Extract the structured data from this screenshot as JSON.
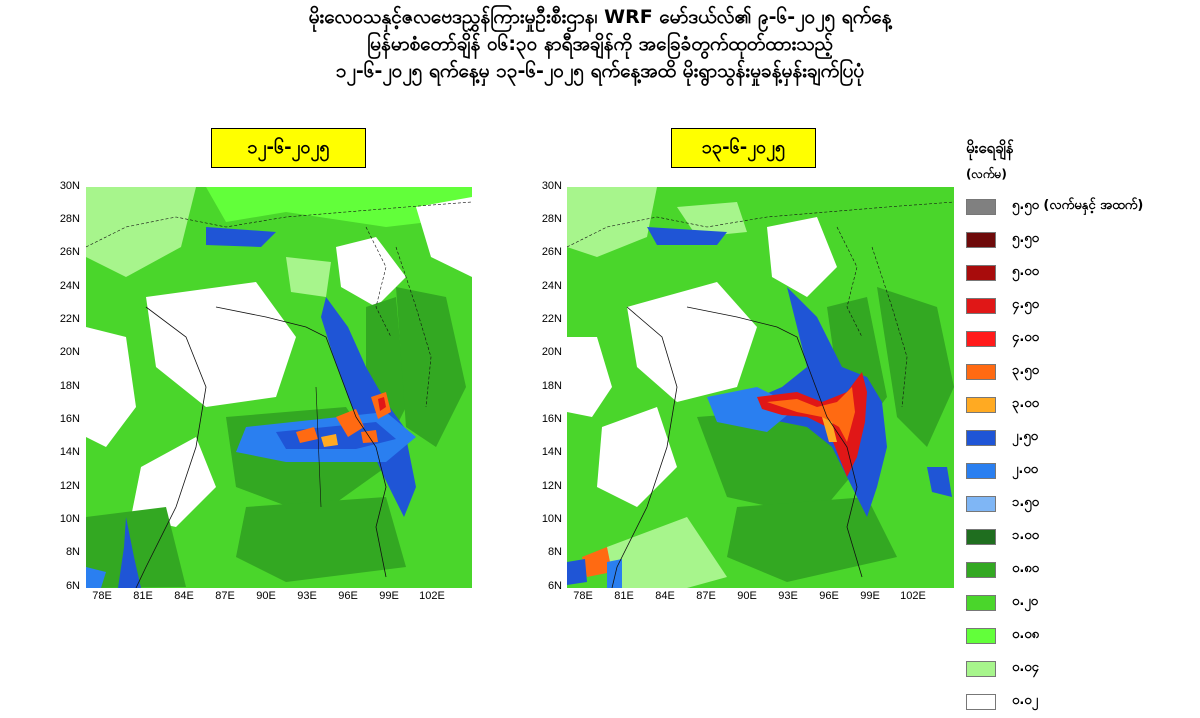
{
  "title": {
    "line1": "မိုးလေဝသနှင့်ဇလဗေဒညွှန်ကြားမှုဦးစီးဌာန၊ WRF မော်ဒယ်လ်၏ ၉-၆-၂၀၂၅ ရက်နေ့",
    "line2": "မြန်မာစံတော်ချိန် ၀၆:၃၀ နာရီအချိန်ကို အခြေခံတွက်ထုတ်ထားသည့်",
    "line3": "၁၂-၆-၂၀၂၅ ရက်နေ့မှ ၁၃-၆-၂၀၂၅ ရက်နေ့အထိ မိုးရွာသွန်းမှုခန့်မှန်းချက်ပြပုံ"
  },
  "maps": [
    {
      "date": "၁၂-၆-၂၀၂၅"
    },
    {
      "date": "၁၃-၆-၂၀၂၅"
    }
  ],
  "axes": {
    "y_ticks": [
      "30N",
      "28N",
      "26N",
      "24N",
      "22N",
      "20N",
      "18N",
      "16N",
      "14N",
      "12N",
      "10N",
      "8N",
      "6N"
    ],
    "x_ticks": [
      "78E",
      "81E",
      "84E",
      "87E",
      "90E",
      "93E",
      "96E",
      "99E",
      "102E"
    ]
  },
  "legend": {
    "title": "မိုးရေချိန်",
    "unit": "(လက်မ)",
    "items": [
      {
        "label": "၅.၅၀ (လက်မနှင့် အထက်)",
        "color": "#808080"
      },
      {
        "label": "၅.၅၀",
        "color": "#6e0a0a"
      },
      {
        "label": "၅.၀၀",
        "color": "#a80c0c"
      },
      {
        "label": "၄.၅၀",
        "color": "#e01717"
      },
      {
        "label": "၄.၀၀",
        "color": "#ff1a1a"
      },
      {
        "label": "၃.၅၀",
        "color": "#ff6a12"
      },
      {
        "label": "၃.၀၀",
        "color": "#ffaa22"
      },
      {
        "label": "၂.၅၀",
        "color": "#1f55d6"
      },
      {
        "label": "၂.၀၀",
        "color": "#2a7ff0"
      },
      {
        "label": "၁.၅၀",
        "color": "#7fb6f5"
      },
      {
        "label": "၁.၀၀",
        "color": "#1f6e1f"
      },
      {
        "label": "၀.၈၀",
        "color": "#33a822"
      },
      {
        "label": "၀.၂၀",
        "color": "#4ad62b"
      },
      {
        "label": "၀.၀၈",
        "color": "#62ff3a"
      },
      {
        "label": "၀.၀၄",
        "color": "#a7f58c"
      },
      {
        "label": "၀.၀၂",
        "color": "#ffffff"
      }
    ]
  }
}
